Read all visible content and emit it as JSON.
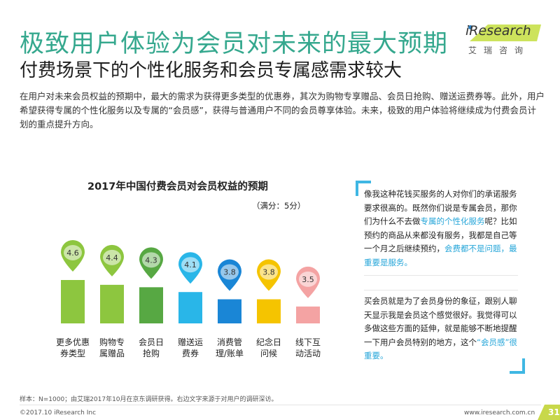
{
  "header": {
    "title": "极致用户体验为会员对未来的最大预期",
    "subtitle": "付费场景下的个性化服务和会员专属感需求较大"
  },
  "logo": {
    "brand": "iResearch",
    "cn": "艾瑞咨询"
  },
  "intro": "在用户对未来会员权益的预期中，最大的需求为获得更多类型的优惠券，其次为购物专享赠品、会员日抢购、赠送运费券等。此外，用户希望获得专属的个性化服务以及专属的“会员感”，获得与普通用户不同的会员尊享体验。未来，极致的用户体验将继续成为付费会员计划的重点提升方向。",
  "chart_data": {
    "type": "bar",
    "title": "2017年中国付费会员对会员权益的预期",
    "unit_note": "（满分：5分）",
    "categories": [
      "更多优惠券类型",
      "购物专属赠品",
      "会员日抢购",
      "赠送运费券",
      "消费管理/账单",
      "纪念日问候",
      "线下互动活动"
    ],
    "category_lines": [
      [
        "更多优惠",
        "券类型"
      ],
      [
        "购物专",
        "属赠品"
      ],
      [
        "会员日",
        "抢购"
      ],
      [
        "赠送运",
        "费券"
      ],
      [
        "消费管",
        "理/账单"
      ],
      [
        "纪念日",
        "问候"
      ],
      [
        "线下互",
        "动活动"
      ]
    ],
    "values": [
      4.6,
      4.4,
      4.3,
      4.1,
      3.8,
      3.8,
      3.5
    ],
    "value_labels": [
      "4.6",
      "4.4",
      "4.3",
      "4.1",
      "3.8",
      "3.8",
      "3.5"
    ],
    "colors": [
      "#8dc63f",
      "#8dc63f",
      "#57a843",
      "#29b6e8",
      "#1a86d6",
      "#f5c400",
      "#f4a3a3"
    ],
    "ylim": [
      0,
      5
    ]
  },
  "quotes": {
    "q1_a": "像我这种花钱买服务的人对你们的承诺服务要求很高的。既然你们说是专属会员，那你们为什么不去做",
    "q1_hl1": "专属的个性化服务",
    "q1_b": "呢？比如预约的商品从来都没有服务，我都是自己等一个月之后继续预约，",
    "q1_hl2": "会费都不是问题，最重要是服务。",
    "q2_a": "买会员就是为了会员身份的象征，跟别人聊天显示我是会员这个感觉很好。我觉得可以多做这些方面的延伸，就是能够不断地提醒一下用户会员特别的地方，这个",
    "q2_hl": "“会员感”很重要。"
  },
  "footer": {
    "note": "样本：N=1000；由艾瑞2017年10月在京东调研获得。右边文字来源于对用户的调研深访。",
    "copyright": "©2017.10 iResearch Inc",
    "website": "www.iresearch.com.cn",
    "page": "31"
  }
}
